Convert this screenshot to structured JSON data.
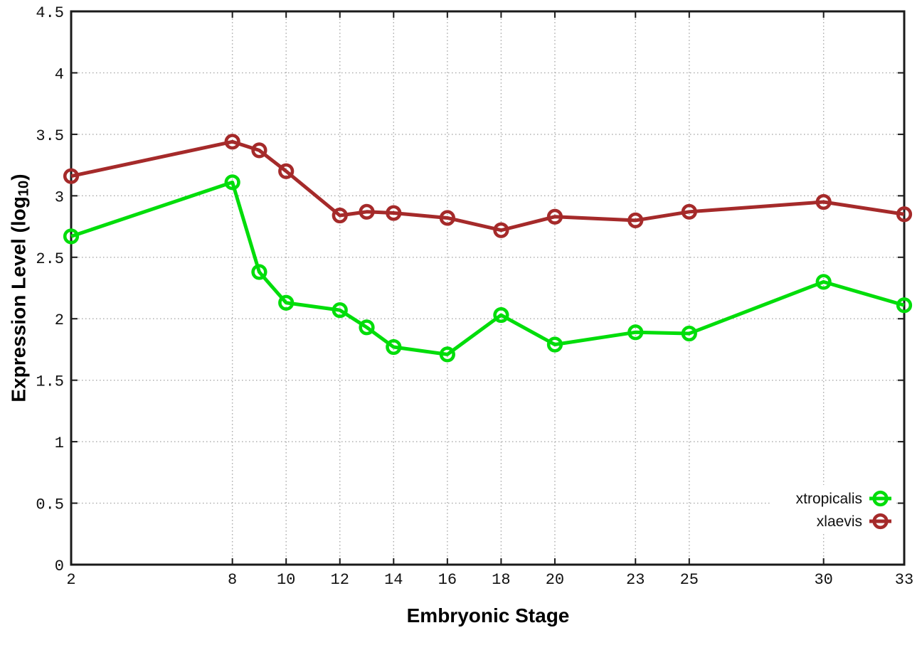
{
  "chart_data": {
    "type": "line",
    "xlabel": "Embryonic Stage",
    "ylabel": "Expression Level (log₁₀)",
    "ylabel_parts": {
      "prefix": "Expression Level (log",
      "sub": "10",
      "suffix": ")"
    },
    "x": [
      2,
      8,
      9,
      10,
      12,
      13,
      14,
      16,
      18,
      20,
      23,
      25,
      30,
      33
    ],
    "xlim": [
      2,
      33
    ],
    "ylim": [
      0,
      4.5
    ],
    "xticks": [
      2,
      8,
      10,
      12,
      14,
      16,
      18,
      20,
      23,
      25,
      30,
      33
    ],
    "xtick_labels": [
      "2",
      "8",
      "10",
      "12",
      "14",
      "16",
      "18",
      "20",
      "23",
      "25",
      "30",
      "33"
    ],
    "yticks": [
      0,
      0.5,
      1,
      1.5,
      2,
      2.5,
      3,
      3.5,
      4,
      4.5
    ],
    "ytick_labels": [
      "0",
      "0.5",
      "1",
      "1.5",
      "2",
      "2.5",
      "3",
      "3.5",
      "4",
      "4.5"
    ],
    "grid": true,
    "legend_position": "bottom-right",
    "series": [
      {
        "name": "xtropicalis",
        "color": "#00dd0a",
        "values": [
          2.67,
          3.11,
          2.38,
          2.13,
          2.07,
          1.93,
          1.77,
          1.71,
          2.03,
          1.79,
          1.89,
          1.88,
          2.3,
          2.11
        ]
      },
      {
        "name": "xlaevis",
        "color": "#a52a2a",
        "values": [
          3.16,
          3.44,
          3.37,
          3.2,
          2.84,
          2.87,
          2.86,
          2.82,
          2.72,
          2.83,
          2.8,
          2.87,
          2.95,
          2.85
        ]
      }
    ]
  }
}
